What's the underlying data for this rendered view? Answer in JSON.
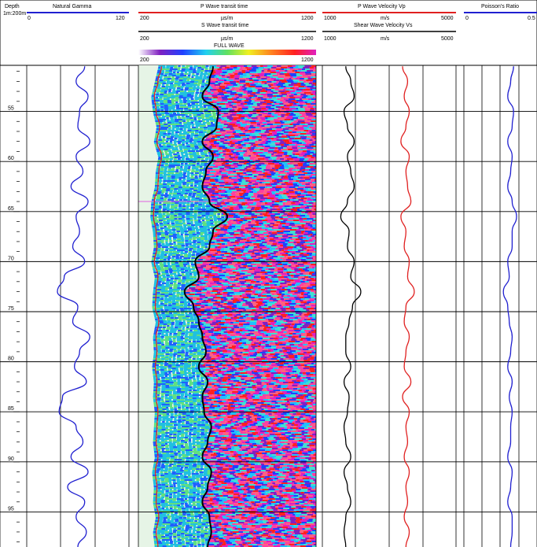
{
  "chart_data": {
    "type": "line",
    "depth_track": {
      "title": "Depth",
      "scale": "1m:200m",
      "depth_range": [
        50.4,
        98.5
      ],
      "depth_ticks": [
        55,
        60,
        65,
        70,
        75,
        80,
        85,
        90,
        95
      ]
    },
    "tracks": [
      {
        "name": "natural-gamma",
        "curves": [
          {
            "title": "Natural Gamma",
            "color": "#2020d0",
            "scale_min": "0",
            "scale_max": "120",
            "unit": "",
            "depth": [
              50.5,
              52,
              53.5,
              55,
              56.5,
              58,
              59.5,
              61,
              62.5,
              64,
              65.5,
              67,
              68.5,
              70,
              71.5,
              73,
              74.5,
              76,
              77.5,
              79,
              80.5,
              82,
              83.5,
              85,
              86.5,
              88,
              89.5,
              91,
              92.5,
              94,
              95.5,
              97,
              98.5
            ],
            "values": [
              68,
              58,
              72,
              62,
              60,
              74,
              58,
              66,
              52,
              72,
              58,
              62,
              54,
              68,
              44,
              36,
              60,
              54,
              74,
              62,
              56,
              70,
              42,
              38,
              58,
              66,
              52,
              72,
              48,
              68,
              58,
              70,
              60
            ]
          }
        ]
      },
      {
        "name": "wave-transit-time",
        "curves": [
          {
            "title": "P Wave transit time",
            "color": "#e02020",
            "scale_min": "200",
            "scale_max": "1200",
            "unit": "µs/m",
            "depth": [
              50.5,
              52,
              53.5,
              55,
              56.5,
              58,
              59.5,
              61,
              62.5,
              64,
              65.5,
              67,
              68.5,
              70,
              71.5,
              73,
              74.5,
              76,
              77.5,
              79,
              80.5,
              82,
              83.5,
              85,
              86.5,
              88,
              89.5,
              91,
              92.5,
              94,
              95.5,
              97,
              98.5
            ],
            "values": [
              330,
              310,
              290,
              300,
              320,
              305,
              330,
              315,
              310,
              290,
              285,
              300,
              305,
              290,
              310,
              300,
              295,
              315,
              300,
              305,
              295,
              305,
              300,
              310,
              305,
              300,
              310,
              295,
              305,
              300,
              315,
              300,
              310
            ]
          },
          {
            "title": "S Wave transit time",
            "color": "#000000",
            "scale_min": "200",
            "scale_max": "1200",
            "unit": "µs/m",
            "depth": [
              50.5,
              52,
              53.5,
              55,
              56.5,
              58,
              59.5,
              61,
              62.5,
              64,
              65.5,
              67,
              68.5,
              70,
              71.5,
              73,
              74.5,
              76,
              77.5,
              79,
              80.5,
              82,
              83.5,
              85,
              86.5,
              88,
              89.5,
              91,
              92.5,
              94,
              95.5,
              97,
              98.5
            ],
            "values": [
              620,
              600,
              560,
              650,
              640,
              560,
              620,
              580,
              560,
              600,
              700,
              620,
              600,
              520,
              540,
              460,
              510,
              540,
              560,
              580,
              540,
              590,
              560,
              570,
              610,
              590,
              560,
              610,
              590,
              560,
              600,
              610,
              590
            ]
          }
        ],
        "full_wave": {
          "title": "FULL WAVE",
          "scale_min": "200",
          "scale_max": "1200"
        }
      },
      {
        "name": "wave-velocity",
        "curves": [
          {
            "title": "P Wave Velocity Vp",
            "color": "#e02020",
            "scale_min": "1000",
            "scale_max": "5000",
            "unit": "m/s",
            "depth": [
              50.5,
              52,
              53.5,
              55,
              56.5,
              58,
              59.5,
              61,
              62.5,
              64,
              65.5,
              67,
              68.5,
              70,
              71.5,
              73,
              74.5,
              76,
              77.5,
              79,
              80.5,
              82,
              83.5,
              85,
              86.5,
              88,
              89.5,
              91,
              92.5,
              94,
              95.5,
              97,
              98.5
            ],
            "values": [
              3400,
              3550,
              3450,
              3600,
              3500,
              3350,
              3600,
              3500,
              3550,
              3650,
              3350,
              3500,
              3450,
              3600,
              3550,
              3750,
              3500,
              3450,
              3600,
              3500,
              3450,
              3650,
              3400,
              3600,
              3500,
              3550,
              3450,
              3600,
              3500,
              3550,
              3450,
              3600,
              3500
            ]
          },
          {
            "title": "Shear Wave Velocity  Vs",
            "color": "#000000",
            "scale_min": "1000",
            "scale_max": "5000",
            "unit": "m/s",
            "depth": [
              50.5,
              52,
              53.5,
              55,
              56.5,
              58,
              59.5,
              61,
              62.5,
              64,
              65.5,
              67,
              68.5,
              70,
              71.5,
              73,
              74.5,
              76,
              77.5,
              79,
              80.5,
              82,
              83.5,
              85,
              86.5,
              88,
              89.5,
              91,
              92.5,
              94,
              95.5,
              97,
              98.5
            ],
            "values": [
              1700,
              1850,
              1950,
              1650,
              1750,
              1950,
              1750,
              1850,
              1950,
              1750,
              1550,
              1800,
              1750,
              1950,
              1850,
              2150,
              1900,
              1800,
              1700,
              1700,
              1850,
              1650,
              1800,
              1750,
              1650,
              1700,
              1850,
              1650,
              1750,
              1850,
              1700,
              1650,
              1700
            ]
          }
        ]
      },
      {
        "name": "poissons-ratio",
        "curves": [
          {
            "title": "Poisson's Ratio",
            "color": "#2020d0",
            "scale_min": "0",
            "scale_max": "0.5",
            "unit": "",
            "depth": [
              50.5,
              52,
              53.5,
              55,
              56.5,
              58,
              59.5,
              61,
              62.5,
              64,
              65.5,
              67,
              68.5,
              70,
              71.5,
              73,
              74.5,
              76,
              77.5,
              79,
              80.5,
              82,
              83.5,
              85,
              86.5,
              88,
              89.5,
              91,
              92.5,
              94,
              95.5,
              97,
              98.5
            ],
            "values": [
              0.34,
              0.32,
              0.3,
              0.34,
              0.33,
              0.3,
              0.33,
              0.32,
              0.3,
              0.33,
              0.36,
              0.33,
              0.33,
              0.3,
              0.31,
              0.27,
              0.3,
              0.31,
              0.33,
              0.32,
              0.3,
              0.33,
              0.31,
              0.33,
              0.32,
              0.32,
              0.3,
              0.33,
              0.32,
              0.3,
              0.33,
              0.33,
              0.32
            ]
          }
        ]
      }
    ]
  }
}
